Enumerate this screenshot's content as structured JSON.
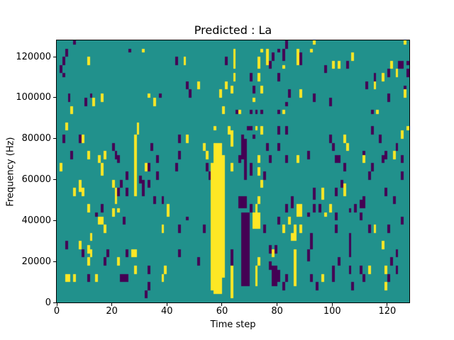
{
  "figure": {
    "background": "#ffffff"
  },
  "chart_data": {
    "type": "heatmap",
    "title": "Predicted : La",
    "xlabel": "Time step",
    "ylabel": "Frequency (Hz)",
    "xlim": [
      0,
      128
    ],
    "ylim": [
      0,
      128000
    ],
    "xticks": [
      0,
      20,
      40,
      60,
      80,
      100,
      120
    ],
    "yticks": [
      0,
      20000,
      40000,
      60000,
      80000,
      100000,
      120000
    ],
    "grid_cols": 128,
    "grid_rows": 64,
    "row_height_hz": 2000,
    "legend": null,
    "grid_lines": false,
    "colors": {
      "mid": "#21918c",
      "low": "#440154",
      "high": "#fde725"
    },
    "cells_low": [
      [
        6,
        63,
        63
      ],
      [
        3,
        60,
        61
      ],
      [
        2,
        58,
        59
      ],
      [
        1,
        56,
        57
      ],
      [
        2,
        55,
        55
      ],
      [
        26,
        61,
        61
      ],
      [
        4,
        49,
        50
      ],
      [
        12,
        50,
        50
      ],
      [
        10,
        48,
        49
      ],
      [
        37,
        50,
        50
      ],
      [
        2,
        39,
        40
      ],
      [
        8,
        39,
        40
      ],
      [
        20,
        37,
        38
      ],
      [
        5,
        35,
        36
      ],
      [
        21,
        35,
        36
      ],
      [
        34,
        37,
        38
      ],
      [
        22,
        34,
        35
      ],
      [
        36,
        34,
        35
      ],
      [
        25,
        30,
        31
      ],
      [
        30,
        29,
        30
      ],
      [
        33,
        32,
        33
      ],
      [
        23,
        28,
        29
      ],
      [
        31,
        26,
        29
      ],
      [
        22,
        26,
        27
      ],
      [
        25,
        26,
        27
      ],
      [
        36,
        30,
        31
      ],
      [
        16,
        22,
        23
      ],
      [
        35,
        24,
        25
      ],
      [
        38,
        24,
        25
      ],
      [
        33,
        28,
        29
      ],
      [
        14,
        21,
        21
      ],
      [
        24,
        19,
        20
      ],
      [
        3,
        13,
        14
      ],
      [
        9,
        11,
        12
      ],
      [
        18,
        11,
        12
      ],
      [
        17,
        9,
        10
      ],
      [
        25,
        11,
        12
      ],
      [
        23,
        5,
        6
      ],
      [
        24,
        5,
        6
      ],
      [
        25,
        5,
        6
      ],
      [
        11,
        5,
        6
      ],
      [
        33,
        3,
        4
      ],
      [
        32,
        1,
        2
      ],
      [
        33,
        7,
        8
      ],
      [
        83,
        62,
        63
      ],
      [
        80,
        61,
        61
      ],
      [
        82,
        59,
        61
      ],
      [
        43,
        58,
        59
      ],
      [
        61,
        58,
        59
      ],
      [
        78,
        59,
        60
      ],
      [
        77,
        57,
        58
      ],
      [
        70,
        54,
        55
      ],
      [
        80,
        54,
        55
      ],
      [
        47,
        52,
        53
      ],
      [
        71,
        51,
        52
      ],
      [
        84,
        50,
        51
      ],
      [
        48,
        50,
        51
      ],
      [
        83,
        48,
        48
      ],
      [
        65,
        46,
        46
      ],
      [
        70,
        46,
        46
      ],
      [
        72,
        46,
        46
      ],
      [
        74,
        46,
        46
      ],
      [
        80,
        46,
        46
      ],
      [
        69,
        42,
        42
      ],
      [
        70,
        42,
        42
      ],
      [
        80,
        41,
        42
      ],
      [
        83,
        41,
        42
      ],
      [
        44,
        39,
        40
      ],
      [
        44,
        35,
        36
      ],
      [
        43,
        32,
        33
      ],
      [
        54,
        32,
        33
      ],
      [
        55,
        30,
        31
      ],
      [
        67,
        35,
        40
      ],
      [
        68,
        30,
        39
      ],
      [
        66,
        34,
        35
      ],
      [
        70,
        31,
        33
      ],
      [
        71,
        40,
        40
      ],
      [
        76,
        37,
        38
      ],
      [
        77,
        34,
        35
      ],
      [
        75,
        30,
        31
      ],
      [
        80,
        37,
        38
      ],
      [
        83,
        34,
        35
      ],
      [
        66,
        23,
        25
      ],
      [
        67,
        23,
        25
      ],
      [
        68,
        23,
        25
      ],
      [
        70,
        22,
        23
      ],
      [
        85,
        23,
        25
      ],
      [
        83,
        22,
        23
      ],
      [
        67,
        4,
        21
      ],
      [
        68,
        4,
        21
      ],
      [
        69,
        4,
        21
      ],
      [
        47,
        20,
        20
      ],
      [
        44,
        17,
        18
      ],
      [
        53,
        17,
        18
      ],
      [
        44,
        11,
        12
      ],
      [
        51,
        9,
        10
      ],
      [
        63,
        9,
        12
      ],
      [
        75,
        17,
        18
      ],
      [
        80,
        19,
        20
      ],
      [
        77,
        12,
        13
      ],
      [
        79,
        12,
        13
      ],
      [
        77,
        8,
        9
      ],
      [
        78,
        4,
        8
      ],
      [
        79,
        4,
        8
      ],
      [
        80,
        5,
        7
      ],
      [
        83,
        5,
        6
      ],
      [
        82,
        3,
        4
      ],
      [
        88,
        58,
        60
      ],
      [
        105,
        57,
        58
      ],
      [
        97,
        56,
        57
      ],
      [
        124,
        57,
        58
      ],
      [
        125,
        57,
        58
      ],
      [
        120,
        55,
        56
      ],
      [
        127,
        55,
        56
      ],
      [
        115,
        54,
        55
      ],
      [
        112,
        52,
        53
      ],
      [
        126,
        52,
        52
      ],
      [
        93,
        49,
        50
      ],
      [
        120,
        49,
        50
      ],
      [
        99,
        48,
        49
      ],
      [
        114,
        46,
        46
      ],
      [
        127,
        58,
        58
      ],
      [
        114,
        41,
        42
      ],
      [
        99,
        39,
        40
      ],
      [
        117,
        39,
        40
      ],
      [
        100,
        37,
        38
      ],
      [
        111,
        36,
        36
      ],
      [
        123,
        37,
        38
      ],
      [
        119,
        35,
        36
      ],
      [
        91,
        35,
        36
      ],
      [
        101,
        34,
        35
      ],
      [
        102,
        34,
        35
      ],
      [
        118,
        34,
        35
      ],
      [
        125,
        34,
        35
      ],
      [
        104,
        32,
        33
      ],
      [
        114,
        32,
        33
      ],
      [
        113,
        30,
        31
      ],
      [
        125,
        30,
        31
      ],
      [
        103,
        28,
        29
      ],
      [
        93,
        25,
        27
      ],
      [
        101,
        26,
        27
      ],
      [
        119,
        26,
        27
      ],
      [
        122,
        24,
        25
      ],
      [
        111,
        23,
        25
      ],
      [
        93,
        22,
        23
      ],
      [
        95,
        22,
        23
      ],
      [
        106,
        22,
        22
      ],
      [
        108,
        22,
        23
      ],
      [
        110,
        23,
        24
      ],
      [
        91,
        21,
        21
      ],
      [
        101,
        20,
        21
      ],
      [
        110,
        20,
        21
      ],
      [
        125,
        19,
        20
      ],
      [
        92,
        13,
        16
      ],
      [
        91,
        10,
        12
      ],
      [
        101,
        17,
        18
      ],
      [
        106,
        11,
        16
      ],
      [
        102,
        9,
        10
      ],
      [
        100,
        5,
        8
      ],
      [
        92,
        5,
        6
      ],
      [
        94,
        3,
        4
      ],
      [
        106,
        7,
        8
      ],
      [
        107,
        3,
        4
      ],
      [
        110,
        7,
        8
      ],
      [
        111,
        5,
        6
      ],
      [
        113,
        17,
        18
      ],
      [
        120,
        17,
        18
      ],
      [
        123,
        11,
        12
      ],
      [
        121,
        9,
        10
      ],
      [
        120,
        5,
        6
      ],
      [
        123,
        7,
        8
      ]
    ],
    "cells_high": [
      [
        31,
        61,
        61
      ],
      [
        11,
        58,
        59
      ],
      [
        16,
        49,
        50
      ],
      [
        13,
        48,
        49
      ],
      [
        5,
        46,
        47
      ],
      [
        33,
        50,
        50
      ],
      [
        35,
        48,
        49
      ],
      [
        3,
        42,
        43
      ],
      [
        29,
        41,
        43
      ],
      [
        9,
        39,
        40
      ],
      [
        28,
        39,
        40
      ],
      [
        11,
        35,
        36
      ],
      [
        17,
        35,
        36
      ],
      [
        28,
        26,
        38
      ],
      [
        15,
        34,
        35
      ],
      [
        1,
        32,
        33
      ],
      [
        16,
        31,
        33
      ],
      [
        32,
        32,
        33
      ],
      [
        8,
        27,
        29
      ],
      [
        6,
        26,
        27
      ],
      [
        9,
        26,
        27
      ],
      [
        20,
        28,
        29
      ],
      [
        21,
        24,
        27
      ],
      [
        11,
        22,
        23
      ],
      [
        20,
        21,
        22
      ],
      [
        22,
        22,
        22
      ],
      [
        40,
        21,
        23
      ],
      [
        15,
        19,
        20
      ],
      [
        16,
        19,
        20
      ],
      [
        17,
        17,
        18
      ],
      [
        38,
        17,
        18
      ],
      [
        12,
        15,
        16
      ],
      [
        8,
        13,
        14
      ],
      [
        11,
        12,
        13
      ],
      [
        12,
        11,
        12
      ],
      [
        11,
        9,
        10
      ],
      [
        22,
        9,
        10
      ],
      [
        27,
        11,
        12
      ],
      [
        28,
        11,
        12
      ],
      [
        28,
        7,
        8
      ],
      [
        3,
        5,
        6
      ],
      [
        4,
        5,
        6
      ],
      [
        6,
        5,
        6
      ],
      [
        14,
        5,
        6
      ],
      [
        39,
        7,
        8
      ],
      [
        38,
        5,
        6
      ],
      [
        74,
        61,
        61
      ],
      [
        76,
        58,
        61
      ],
      [
        46,
        58,
        59
      ],
      [
        64,
        57,
        61
      ],
      [
        73,
        57,
        59
      ],
      [
        82,
        57,
        57
      ],
      [
        73,
        54,
        55
      ],
      [
        64,
        54,
        55
      ],
      [
        51,
        52,
        53
      ],
      [
        61,
        52,
        53
      ],
      [
        63,
        51,
        52
      ],
      [
        74,
        51,
        52
      ],
      [
        59,
        50,
        51
      ],
      [
        71,
        49,
        49
      ],
      [
        60,
        46,
        47
      ],
      [
        66,
        46,
        46
      ],
      [
        82,
        46,
        46
      ],
      [
        56,
        3,
        33
      ],
      [
        57,
        2,
        38
      ],
      [
        58,
        2,
        38
      ],
      [
        59,
        2,
        38
      ],
      [
        60,
        6,
        35
      ],
      [
        57,
        42,
        42
      ],
      [
        62,
        41,
        42
      ],
      [
        63,
        38,
        41
      ],
      [
        72,
        42,
        42
      ],
      [
        74,
        41,
        42
      ],
      [
        47,
        39,
        40
      ],
      [
        53,
        37,
        38
      ],
      [
        54,
        35,
        36
      ],
      [
        63,
        32,
        33
      ],
      [
        73,
        34,
        35
      ],
      [
        73,
        31,
        32
      ],
      [
        74,
        28,
        29
      ],
      [
        73,
        24,
        25
      ],
      [
        72,
        22,
        23
      ],
      [
        71,
        18,
        21
      ],
      [
        72,
        18,
        21
      ],
      [
        73,
        18,
        21
      ],
      [
        63,
        1,
        8
      ],
      [
        73,
        9,
        10
      ],
      [
        72,
        4,
        8
      ],
      [
        82,
        17,
        18
      ],
      [
        84,
        19,
        20
      ],
      [
        85,
        15,
        16
      ],
      [
        78,
        11,
        12
      ],
      [
        93,
        63,
        63
      ],
      [
        126,
        63,
        63
      ],
      [
        87,
        58,
        61
      ],
      [
        92,
        61,
        61
      ],
      [
        107,
        59,
        60
      ],
      [
        100,
        57,
        58
      ],
      [
        102,
        57,
        58
      ],
      [
        121,
        57,
        58
      ],
      [
        123,
        55,
        56
      ],
      [
        118,
        54,
        55
      ],
      [
        115,
        52,
        53
      ],
      [
        126,
        50,
        51
      ],
      [
        88,
        50,
        51
      ],
      [
        116,
        46,
        46
      ],
      [
        127,
        42,
        42
      ],
      [
        125,
        40,
        41
      ],
      [
        104,
        39,
        40
      ],
      [
        105,
        37,
        38
      ],
      [
        122,
        35,
        36
      ],
      [
        87,
        34,
        35
      ],
      [
        111,
        34,
        35
      ],
      [
        104,
        26,
        28
      ],
      [
        96,
        25,
        27
      ],
      [
        87,
        21,
        23
      ],
      [
        88,
        21,
        23
      ],
      [
        99,
        22,
        23
      ],
      [
        97,
        21,
        21
      ],
      [
        86,
        15,
        18
      ],
      [
        86,
        4,
        12
      ],
      [
        88,
        17,
        18
      ],
      [
        96,
        5,
        6
      ],
      [
        115,
        17,
        18
      ],
      [
        118,
        13,
        14
      ],
      [
        113,
        7,
        8
      ],
      [
        119,
        7,
        8
      ],
      [
        119,
        3,
        4
      ]
    ]
  }
}
